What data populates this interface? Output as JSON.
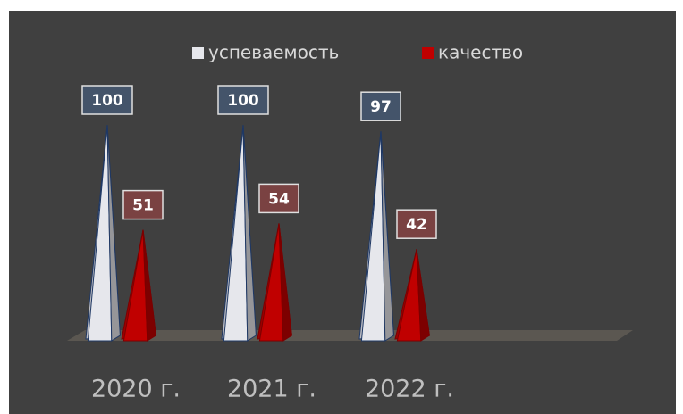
{
  "chart_data": {
    "type": "pyramid",
    "categories": [
      "2020 г.",
      "2021 г.",
      "2022 г."
    ],
    "series": [
      {
        "name": "успеваемость",
        "color": "#e6e7ec",
        "values": [
          100,
          100,
          97
        ]
      },
      {
        "name": "качество",
        "color": "#c00000",
        "values": [
          51,
          54,
          42
        ]
      }
    ]
  }
}
